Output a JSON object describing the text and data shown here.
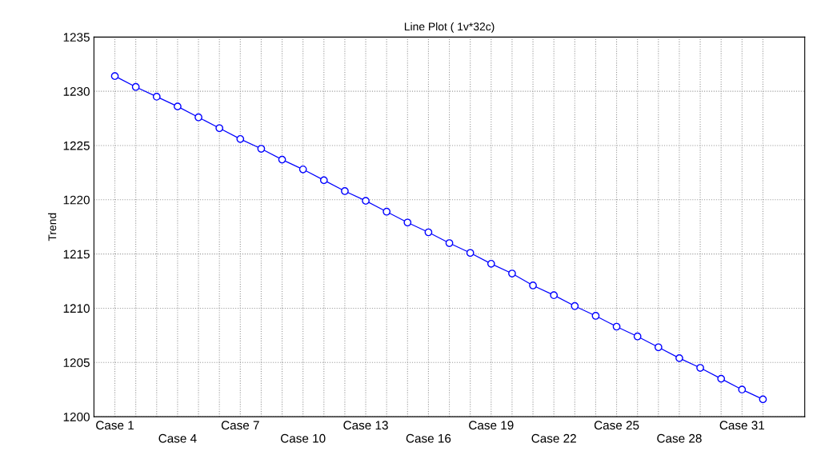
{
  "chart_data": {
    "type": "line",
    "title": "Line Plot ( 1v*32c)",
    "ylabel": "Trend",
    "categories": [
      "Case 1",
      null,
      null,
      "Case 4",
      null,
      null,
      "Case 7",
      null,
      null,
      "Case 10",
      null,
      null,
      "Case 13",
      null,
      null,
      "Case 16",
      null,
      null,
      "Case 19",
      null,
      null,
      "Case 22",
      null,
      null,
      "Case 25",
      null,
      null,
      "Case 28",
      null,
      null,
      "Case 31",
      null
    ],
    "series": [
      {
        "color": "#0000ff",
        "values": [
          1231.4,
          1230.4,
          1229.5,
          1228.6,
          1227.6,
          1226.6,
          1225.6,
          1224.7,
          1223.7,
          1222.8,
          1221.8,
          1220.8,
          1219.9,
          1218.9,
          1217.9,
          1217.0,
          1216.0,
          1215.1,
          1214.1,
          1213.2,
          1212.1,
          1211.2,
          1210.2,
          1209.3,
          1208.3,
          1207.4,
          1206.4,
          1205.4,
          1204.5,
          1203.5,
          1202.5,
          1201.6
        ]
      }
    ],
    "ylim": [
      1200,
      1235
    ],
    "yticks": [
      1200,
      1205,
      1210,
      1215,
      1220,
      1225,
      1230,
      1235
    ],
    "grid": true,
    "marker": "circle",
    "line_style": "solid"
  }
}
